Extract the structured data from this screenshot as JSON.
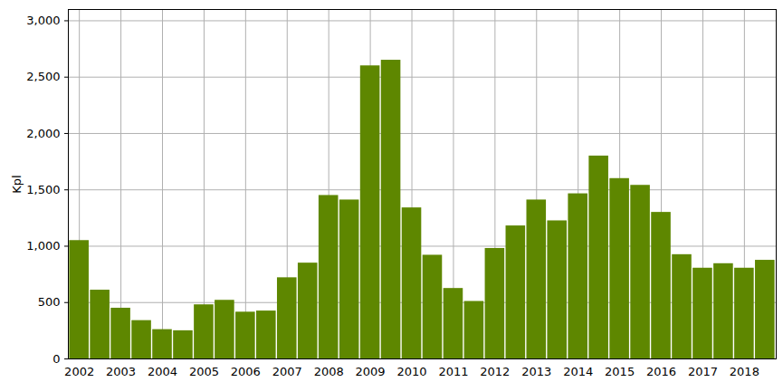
{
  "chart_data": {
    "type": "bar",
    "y_label": "Kpl",
    "categories": [
      "2002",
      null,
      "2003",
      null,
      "2004",
      null,
      "2005",
      null,
      "2006",
      null,
      "2007",
      null,
      "2008",
      null,
      "2009",
      null,
      "2010",
      null,
      "2011",
      null,
      "2012",
      null,
      "2013",
      null,
      "2014",
      null,
      "2015",
      null,
      "2016",
      null,
      "2017",
      null,
      "2018",
      null
    ],
    "values": [
      1050,
      610,
      450,
      340,
      260,
      250,
      480,
      520,
      415,
      425,
      720,
      850,
      1450,
      1410,
      2600,
      2650,
      1340,
      920,
      625,
      510,
      980,
      1180,
      1410,
      1225,
      1465,
      1800,
      1600,
      1540,
      1300,
      925,
      805,
      845,
      805,
      875
    ],
    "color": "#5e8700",
    "ylim": [
      0,
      3100
    ],
    "yticks": [
      0,
      500,
      1000,
      1500,
      2000,
      2500,
      3000
    ],
    "grid": true
  }
}
